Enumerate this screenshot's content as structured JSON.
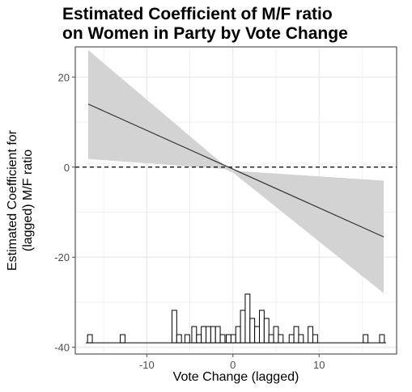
{
  "chart": {
    "title_line1": "Estimated Coefficient of M/F ratio",
    "title_line2": "on Women in Party by Vote Change",
    "xlabel": "Vote Change (lagged)",
    "ylabel_line1": "Estimated Coefficient for",
    "ylabel_line2": "(lagged) M/F ratio"
  },
  "chart_data": {
    "type": "line",
    "title": "Estimated Coefficient of M/F ratio on Women in Party by Vote Change",
    "xlabel": "Vote Change (lagged)",
    "ylabel": "Estimated Coefficient for (lagged) M/F ratio",
    "xlim": [
      -18.3,
      19
    ],
    "ylim": [
      -41.5,
      26.7
    ],
    "x_ticks": [
      -10,
      0,
      10
    ],
    "x_tick_labels": [
      "-10",
      "0",
      "10"
    ],
    "y_ticks": [
      -40,
      -20,
      0,
      20
    ],
    "y_tick_labels": [
      "-40",
      "-20",
      "0",
      "20"
    ],
    "grid": true,
    "reference_line": {
      "y": 0,
      "style": "dashed"
    },
    "series": [
      {
        "type": "line",
        "x": [
          -16.8,
          17.5
        ],
        "y": [
          14.0,
          -15.5
        ]
      }
    ],
    "confidence_band": {
      "x": [
        -16.8,
        -1.0,
        0.0,
        17.5
      ],
      "lower": [
        1.8,
        -0.4,
        -1.2,
        -28.0
      ],
      "upper": [
        26.0,
        0.4,
        -0.8,
        -3.0
      ]
    },
    "histogram": {
      "baseline": -39.0,
      "bin_width": 0.55,
      "bars": [
        {
          "x": -16.6,
          "top": -37.2
        },
        {
          "x": -12.8,
          "top": -37.2
        },
        {
          "x": -6.8,
          "top": -31.8
        },
        {
          "x": -6.25,
          "top": -37.2
        },
        {
          "x": -5.3,
          "top": -37.2
        },
        {
          "x": -4.5,
          "top": -35.4
        },
        {
          "x": -3.95,
          "top": -37.2
        },
        {
          "x": -3.4,
          "top": -35.4
        },
        {
          "x": -2.85,
          "top": -35.4
        },
        {
          "x": -2.3,
          "top": -35.4
        },
        {
          "x": -1.75,
          "top": -35.4
        },
        {
          "x": -1.2,
          "top": -37.2
        },
        {
          "x": -0.5,
          "top": -37.2
        },
        {
          "x": 0.05,
          "top": -37.2
        },
        {
          "x": 0.6,
          "top": -35.4
        },
        {
          "x": 1.15,
          "top": -31.8
        },
        {
          "x": 1.7,
          "top": -28.2
        },
        {
          "x": 2.25,
          "top": -33.6
        },
        {
          "x": 2.8,
          "top": -35.4
        },
        {
          "x": 3.35,
          "top": -31.8
        },
        {
          "x": 3.9,
          "top": -33.6
        },
        {
          "x": 4.45,
          "top": -37.2
        },
        {
          "x": 5.0,
          "top": -35.4
        },
        {
          "x": 5.55,
          "top": -37.2
        },
        {
          "x": 6.8,
          "top": -37.2
        },
        {
          "x": 7.35,
          "top": -35.4
        },
        {
          "x": 7.9,
          "top": -37.2
        },
        {
          "x": 9.0,
          "top": -35.4
        },
        {
          "x": 9.55,
          "top": -37.2
        },
        {
          "x": 15.4,
          "top": -37.2
        },
        {
          "x": 17.3,
          "top": -37.2
        }
      ]
    }
  },
  "colors": {
    "band": "#d3d3d3",
    "line": "#333333",
    "grid": "#e8e8e8",
    "axis_text": "#4d4d4d",
    "panel_border": "#333333"
  }
}
